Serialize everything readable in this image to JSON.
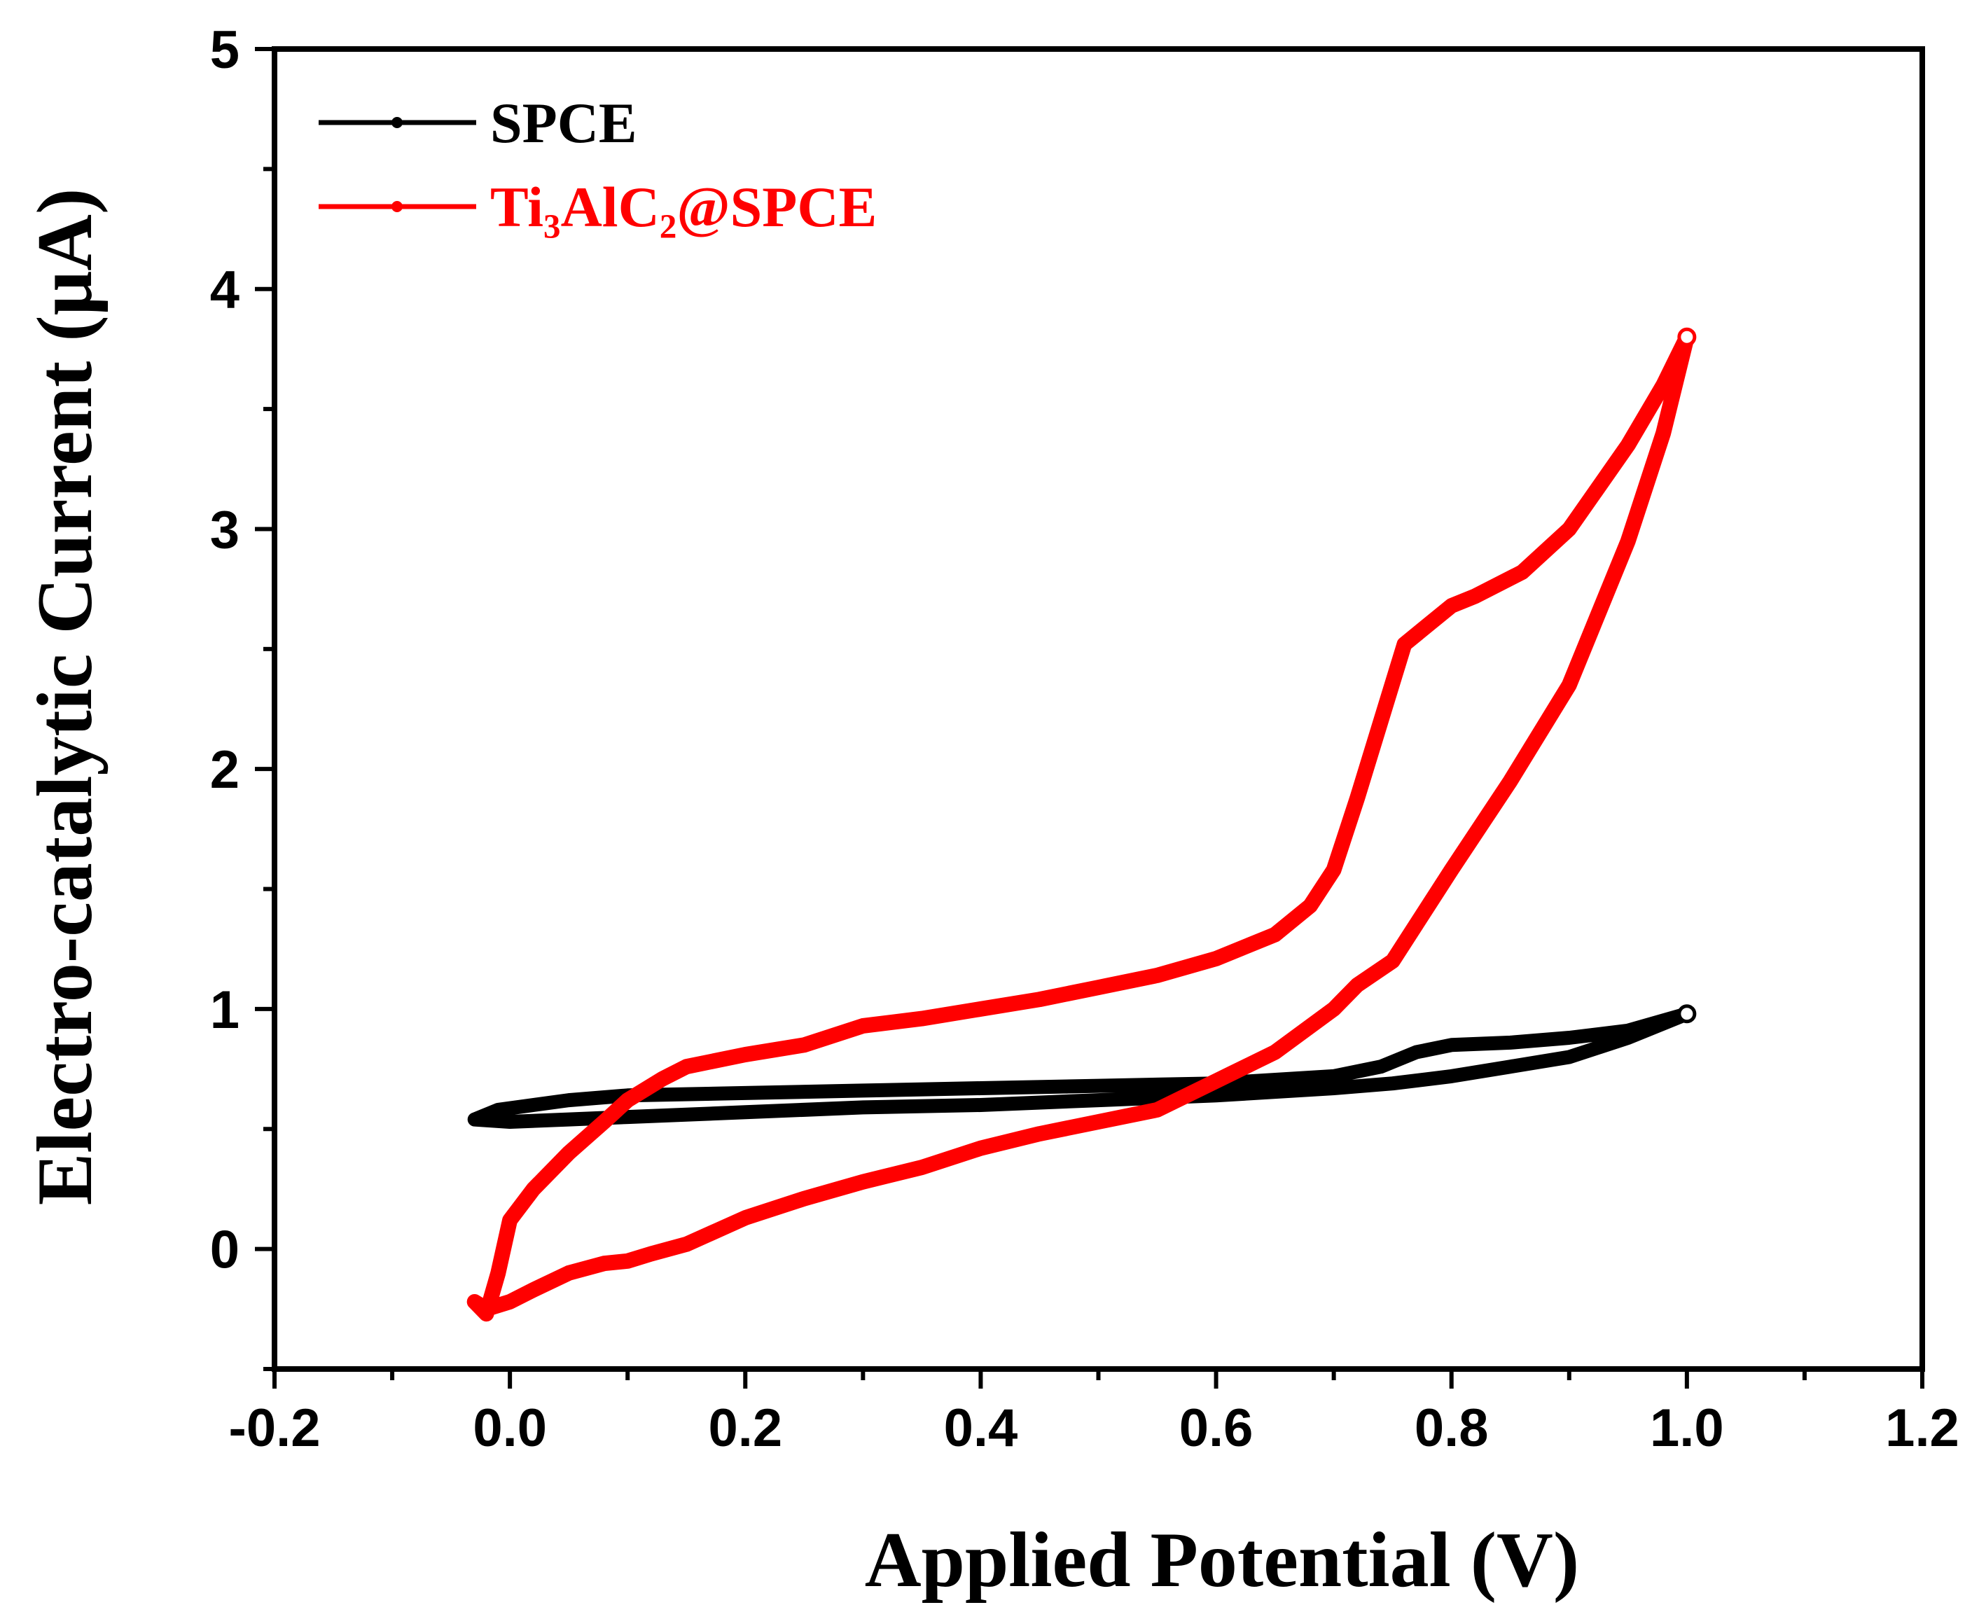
{
  "chart_data": {
    "type": "line",
    "title": "",
    "xlabel": "Applied Potential (V)",
    "ylabel": "Electro-catalytic Current (μA)",
    "xlim": [
      -0.2,
      1.2
    ],
    "ylim": [
      -0.5,
      5
    ],
    "xticks": [
      -0.2,
      0.0,
      0.2,
      0.4,
      0.6,
      0.8,
      1.0,
      1.2
    ],
    "xtick_labels": [
      "-0.2",
      "0.0",
      "0.2",
      "0.4",
      "0.6",
      "0.8",
      "1.0",
      "1.2"
    ],
    "yticks": [
      0,
      1,
      2,
      3,
      4,
      5
    ],
    "ytick_labels": [
      "0",
      "1",
      "2",
      "3",
      "4",
      "5"
    ],
    "grid": false,
    "legend_position": "top-left",
    "series": [
      {
        "name": "SPCE",
        "color": "#000000",
        "x": [
          -0.03,
          -0.01,
          0.05,
          0.1,
          0.2,
          0.3,
          0.4,
          0.5,
          0.6,
          0.7,
          0.74,
          0.77,
          0.8,
          0.85,
          0.9,
          0.95,
          1.0,
          0.95,
          0.9,
          0.85,
          0.8,
          0.75,
          0.7,
          0.6,
          0.5,
          0.4,
          0.3,
          0.2,
          0.1,
          0.05,
          0.0,
          -0.03
        ],
        "y": [
          0.54,
          0.58,
          0.62,
          0.64,
          0.65,
          0.66,
          0.67,
          0.68,
          0.69,
          0.72,
          0.76,
          0.82,
          0.85,
          0.86,
          0.88,
          0.91,
          0.98,
          0.88,
          0.8,
          0.76,
          0.72,
          0.69,
          0.67,
          0.64,
          0.62,
          0.6,
          0.59,
          0.57,
          0.55,
          0.54,
          0.53,
          0.54
        ]
      },
      {
        "name": "Ti₃AlC₂@SPCE",
        "color": "#ff0000",
        "x": [
          -0.02,
          -0.01,
          0.0,
          0.02,
          0.05,
          0.08,
          0.1,
          0.13,
          0.15,
          0.2,
          0.25,
          0.3,
          0.35,
          0.4,
          0.45,
          0.5,
          0.55,
          0.6,
          0.65,
          0.68,
          0.7,
          0.72,
          0.74,
          0.76,
          0.78,
          0.8,
          0.82,
          0.86,
          0.9,
          0.95,
          0.98,
          1.0,
          0.98,
          0.95,
          0.9,
          0.85,
          0.8,
          0.75,
          0.72,
          0.7,
          0.65,
          0.6,
          0.55,
          0.5,
          0.45,
          0.4,
          0.35,
          0.3,
          0.25,
          0.2,
          0.15,
          0.12,
          0.1,
          0.08,
          0.05,
          0.02,
          0.0,
          -0.02,
          -0.03,
          -0.02
        ],
        "y": [
          -0.27,
          -0.1,
          0.12,
          0.25,
          0.4,
          0.53,
          0.62,
          0.71,
          0.76,
          0.81,
          0.85,
          0.93,
          0.96,
          1.0,
          1.04,
          1.09,
          1.14,
          1.21,
          1.31,
          1.43,
          1.58,
          1.88,
          2.2,
          2.52,
          2.6,
          2.68,
          2.72,
          2.82,
          3.0,
          3.35,
          3.6,
          3.8,
          3.4,
          2.95,
          2.35,
          1.95,
          1.58,
          1.2,
          1.1,
          1.0,
          0.82,
          0.7,
          0.58,
          0.53,
          0.48,
          0.42,
          0.34,
          0.28,
          0.21,
          0.13,
          0.02,
          -0.02,
          -0.05,
          -0.06,
          -0.1,
          -0.17,
          -0.22,
          -0.25,
          -0.22,
          -0.27
        ]
      }
    ]
  }
}
